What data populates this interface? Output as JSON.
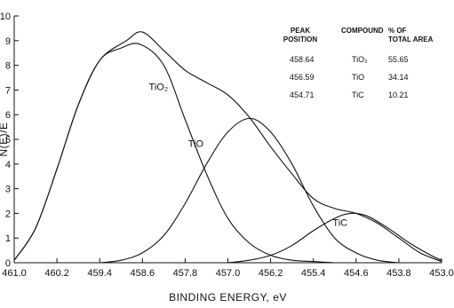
{
  "chart_data": {
    "type": "line",
    "title": "",
    "xlabel": "BINDING ENERGY, eV",
    "ylabel": "N(E)/E",
    "xlim": [
      461.0,
      453.0
    ],
    "ylim": [
      0,
      10
    ],
    "x_reversed": true,
    "x_ticks": [
      "461.0",
      "460.2",
      "459.4",
      "458.6",
      "457.8",
      "457.0",
      "456.2",
      "455.4",
      "454.6",
      "453.8",
      "453.0"
    ],
    "y_ticks": [
      "0",
      "1",
      "2",
      "3",
      "4",
      "5",
      "6",
      "7",
      "8",
      "9",
      "10"
    ],
    "series": [
      {
        "name": "",
        "x": [
          461.0,
          460.6,
          460.2,
          459.8,
          459.4,
          458.9,
          458.6,
          458.2,
          457.8,
          457.4,
          457.0,
          456.6,
          456.2,
          455.8,
          455.4,
          455.0,
          454.6,
          454.2,
          453.8,
          453.4,
          453.0
        ],
        "y": [
          0.1,
          1.4,
          3.8,
          6.4,
          8.2,
          9.0,
          9.35,
          8.6,
          7.8,
          7.3,
          6.8,
          5.9,
          4.7,
          3.6,
          2.6,
          2.2,
          2.0,
          1.6,
          1.0,
          0.4,
          0.05
        ]
      },
      {
        "name": "TiO2",
        "x": [
          461.0,
          460.6,
          460.2,
          459.8,
          459.4,
          459.0,
          458.64,
          458.2,
          457.8,
          457.4,
          457.0,
          456.6,
          456.2,
          455.8,
          455.4,
          455.0
        ],
        "y": [
          0.1,
          1.4,
          3.8,
          6.4,
          8.2,
          8.7,
          8.85,
          8.0,
          5.8,
          3.6,
          1.8,
          0.8,
          0.3,
          0.1,
          0.05,
          0.0
        ]
      },
      {
        "name": "TiO",
        "x": [
          459.4,
          459.0,
          458.6,
          458.2,
          457.8,
          457.4,
          457.0,
          456.59,
          456.2,
          455.8,
          455.4,
          455.0,
          454.6,
          454.2,
          453.8
        ],
        "y": [
          0.0,
          0.1,
          0.4,
          1.1,
          2.4,
          4.0,
          5.3,
          5.85,
          5.3,
          4.0,
          2.3,
          1.0,
          0.4,
          0.1,
          0.0
        ]
      },
      {
        "name": "TiC",
        "x": [
          457.0,
          456.6,
          456.2,
          455.8,
          455.4,
          455.0,
          454.71,
          454.4,
          454.0,
          453.6,
          453.2,
          453.0
        ],
        "y": [
          0.0,
          0.1,
          0.3,
          0.7,
          1.3,
          1.8,
          2.0,
          1.9,
          1.4,
          0.8,
          0.3,
          0.1
        ]
      }
    ],
    "curve_labels": [
      {
        "series": "TiO2",
        "text": "TiO₂",
        "x": 458.3,
        "y": 7.0
      },
      {
        "series": "TiO",
        "text": "TiO",
        "x": 457.6,
        "y": 4.7
      },
      {
        "series": "TiC",
        "text": "TiC",
        "x": 454.9,
        "y": 1.5
      }
    ],
    "table": {
      "headers": [
        "PEAK POSITION",
        "COMPOUND",
        "% OF TOTAL AREA"
      ],
      "header_lines": [
        [
          "PEAK",
          "POSITION"
        ],
        [
          "COMPOUND"
        ],
        [
          "% OF",
          "TOTAL AREA"
        ]
      ],
      "rows": [
        [
          "458.64",
          "TiO₂",
          "55.65"
        ],
        [
          "456.59",
          "TiO",
          "34.14"
        ],
        [
          "454.71",
          "TiC",
          "10.21"
        ]
      ]
    }
  }
}
